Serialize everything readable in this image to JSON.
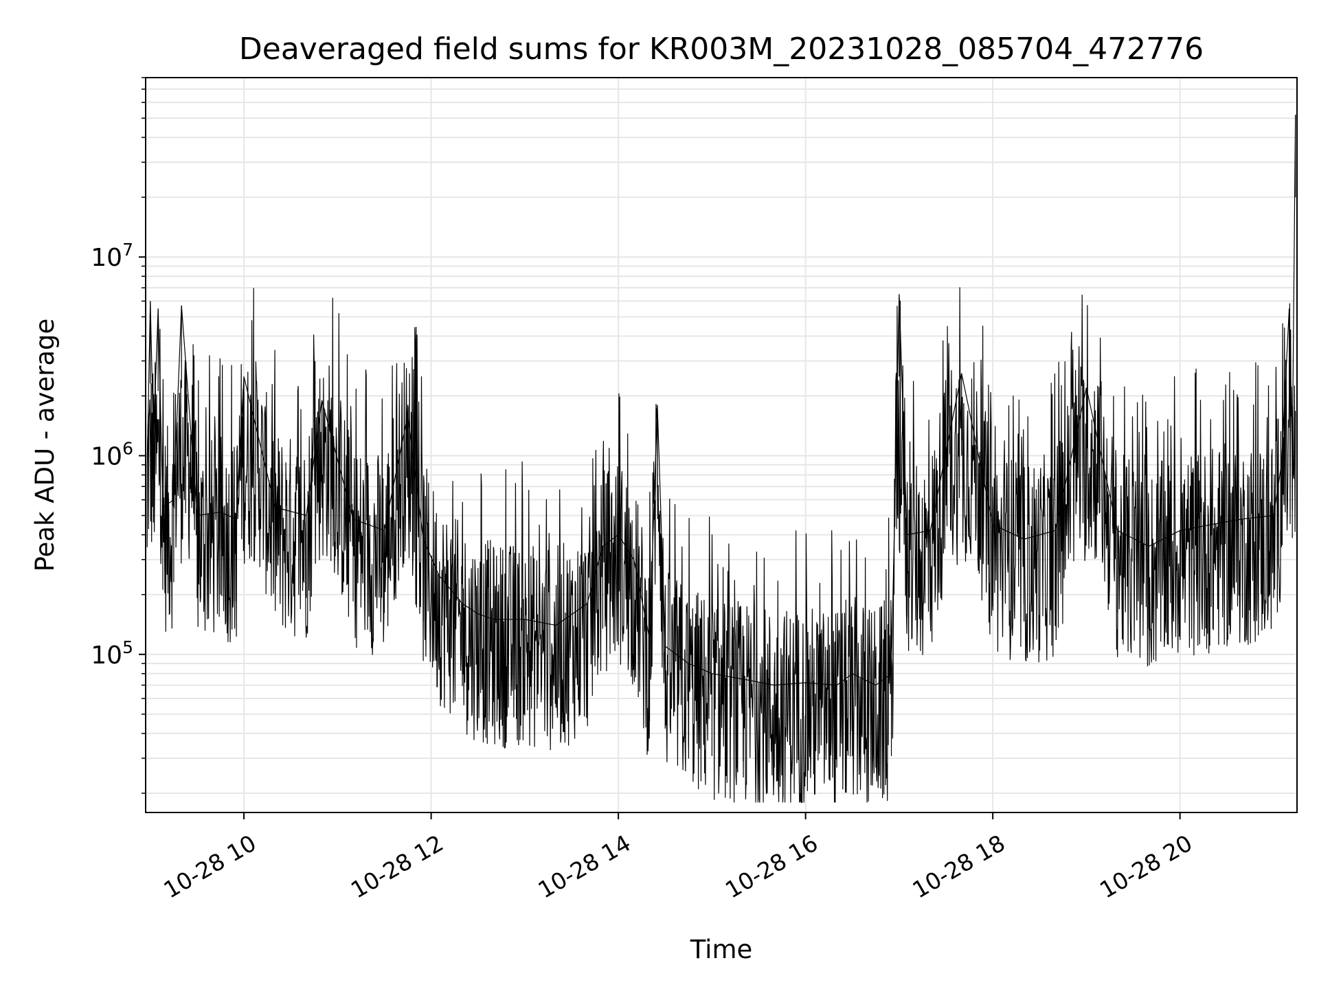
{
  "chart_data": {
    "type": "line",
    "title": "Deaveraged field sums for KR003M_20231028_085704_472776",
    "xlabel": "Time",
    "ylabel": "Peak ADU - average",
    "yscale": "log",
    "grid": true,
    "line_color": "#000000",
    "grid_color": "#e6e6e6",
    "xlim": [
      "2023-10-28 08:57",
      "2023-10-28 21:15"
    ],
    "ylim": [
      16000,
      80000000
    ],
    "xticks": [
      {
        "value": "2023-10-28 10:00",
        "label": "10-28 10"
      },
      {
        "value": "2023-10-28 12:00",
        "label": "10-28 12"
      },
      {
        "value": "2023-10-28 14:00",
        "label": "10-28 14"
      },
      {
        "value": "2023-10-28 16:00",
        "label": "10-28 16"
      },
      {
        "value": "2023-10-28 18:00",
        "label": "10-28 18"
      },
      {
        "value": "2023-10-28 20:00",
        "label": "10-28 20"
      }
    ],
    "yticks": [
      {
        "value": 100000,
        "base": "10",
        "exp": "5"
      },
      {
        "value": 1000000,
        "base": "10",
        "exp": "6"
      },
      {
        "value": 10000000,
        "base": "10",
        "exp": "7"
      }
    ],
    "series": [
      {
        "x": [
          "2023-10-28 08:58",
          "2023-10-28 09:00",
          "2023-10-28 09:02",
          "2023-10-28 09:05",
          "2023-10-28 09:08",
          "2023-10-28 09:15",
          "2023-10-28 09:20",
          "2023-10-28 09:30",
          "2023-10-28 09:45",
          "2023-10-28 09:55",
          "2023-10-28 10:00",
          "2023-10-28 10:20",
          "2023-10-28 10:40",
          "2023-10-28 10:50",
          "2023-10-28 11:10",
          "2023-10-28 11:30",
          "2023-10-28 11:45",
          "2023-10-28 11:55",
          "2023-10-28 12:05",
          "2023-10-28 12:20",
          "2023-10-28 12:30",
          "2023-10-28 12:40",
          "2023-10-28 13:00",
          "2023-10-28 13:20",
          "2023-10-28 13:40",
          "2023-10-28 13:50",
          "2023-10-28 14:00",
          "2023-10-28 14:10",
          "2023-10-28 14:20",
          "2023-10-28 14:25",
          "2023-10-28 14:30",
          "2023-10-28 14:45",
          "2023-10-28 15:00",
          "2023-10-28 15:20",
          "2023-10-28 15:40",
          "2023-10-28 16:00",
          "2023-10-28 16:20",
          "2023-10-28 16:30",
          "2023-10-28 16:45",
          "2023-10-28 16:55",
          "2023-10-28 17:00",
          "2023-10-28 17:05",
          "2023-10-28 17:20",
          "2023-10-28 17:40",
          "2023-10-28 18:00",
          "2023-10-28 18:20",
          "2023-10-28 18:40",
          "2023-10-28 19:00",
          "2023-10-28 19:20",
          "2023-10-28 19:40",
          "2023-10-28 20:00",
          "2023-10-28 20:20",
          "2023-10-28 20:40",
          "2023-10-28 21:00",
          "2023-10-28 21:05",
          "2023-10-28 21:10",
          "2023-10-28 21:12",
          "2023-10-28 21:14"
        ],
        "y": [
          900000,
          6000000,
          1200000,
          5500000,
          550000,
          600000,
          5700000,
          500000,
          520000,
          480000,
          2500000,
          550000,
          500000,
          1900000,
          480000,
          420000,
          1600000,
          380000,
          250000,
          180000,
          160000,
          150000,
          150000,
          140000,
          180000,
          350000,
          400000,
          300000,
          120000,
          1800000,
          110000,
          90000,
          80000,
          75000,
          70000,
          72000,
          70000,
          80000,
          70000,
          80000,
          6500000,
          400000,
          420000,
          2600000,
          450000,
          380000,
          420000,
          2200000,
          420000,
          350000,
          420000,
          450000,
          480000,
          500000,
          900000,
          5500000,
          1000000,
          52000000
        ]
      }
    ]
  }
}
